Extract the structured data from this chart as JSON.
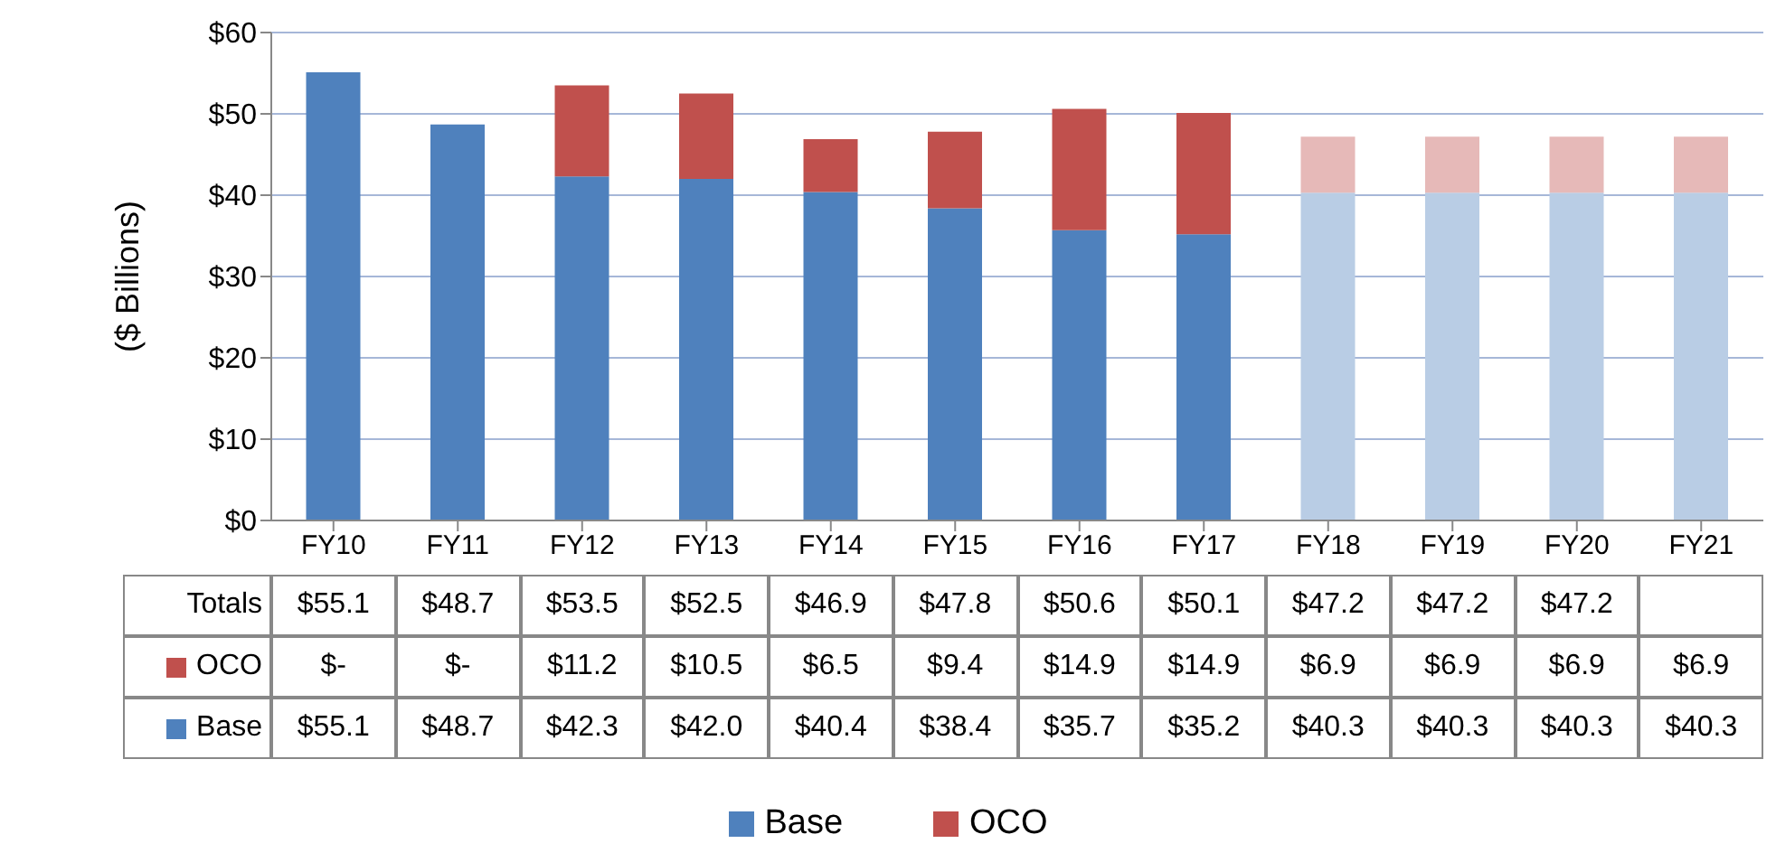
{
  "chart_data": {
    "type": "bar",
    "stacked": true,
    "ylabel": "($ Billions)",
    "categories": [
      "FY10",
      "FY11",
      "FY12",
      "FY13",
      "FY14",
      "FY15",
      "FY16",
      "FY17",
      "FY18",
      "FY19",
      "FY20",
      "FY21"
    ],
    "series": [
      {
        "name": "Base",
        "color": "#4f81bd",
        "colors": [
          "#4f81bd",
          "#4f81bd",
          "#4f81bd",
          "#4f81bd",
          "#4f81bd",
          "#4f81bd",
          "#4f81bd",
          "#4f81bd",
          "#b9cde5",
          "#b9cde5",
          "#b9cde5",
          "#b9cde5"
        ],
        "values": [
          55.1,
          48.7,
          42.3,
          42.0,
          40.4,
          38.4,
          35.7,
          35.2,
          40.3,
          40.3,
          40.3,
          40.3
        ],
        "value_labels": [
          "$55.1",
          "$48.7",
          "$42.3",
          "$42.0",
          "$40.4",
          "$38.4",
          "$35.7",
          "$35.2",
          "$40.3",
          "$40.3",
          "$40.3",
          "$40.3"
        ]
      },
      {
        "name": "OCO",
        "color": "#c0504d",
        "colors": [
          "#c0504d",
          "#c0504d",
          "#c0504d",
          "#c0504d",
          "#c0504d",
          "#c0504d",
          "#c0504d",
          "#c0504d",
          "#e6b9b8",
          "#e6b9b8",
          "#e6b9b8",
          "#e6b9b8"
        ],
        "values": [
          0,
          0,
          11.2,
          10.5,
          6.5,
          9.4,
          14.9,
          14.9,
          6.9,
          6.9,
          6.9,
          6.9
        ],
        "value_labels": [
          "$-",
          "$-",
          "$11.2",
          "$10.5",
          "$6.5",
          "$9.4",
          "$14.9",
          "$14.9",
          "$6.9",
          "$6.9",
          "$6.9",
          "$6.9"
        ]
      }
    ],
    "totals": [
      "$55.1",
      "$48.7",
      "$53.5",
      "$52.5",
      "$46.9",
      "$47.8",
      "$50.6",
      "$50.1",
      "$47.2",
      "$47.2",
      "$47.2",
      null
    ],
    "annotations": [
      "Totals"
    ],
    "ylim": [
      0,
      60
    ],
    "yticks": [
      {
        "value": 0,
        "label": "$0"
      },
      {
        "value": 10,
        "label": "$10"
      },
      {
        "value": 20,
        "label": "$20"
      },
      {
        "value": 30,
        "label": "$30"
      },
      {
        "value": 40,
        "label": "$40"
      },
      {
        "value": 50,
        "label": "$50"
      },
      {
        "value": 60,
        "label": "$60"
      }
    ],
    "grid": "y",
    "legend": "bottom"
  }
}
